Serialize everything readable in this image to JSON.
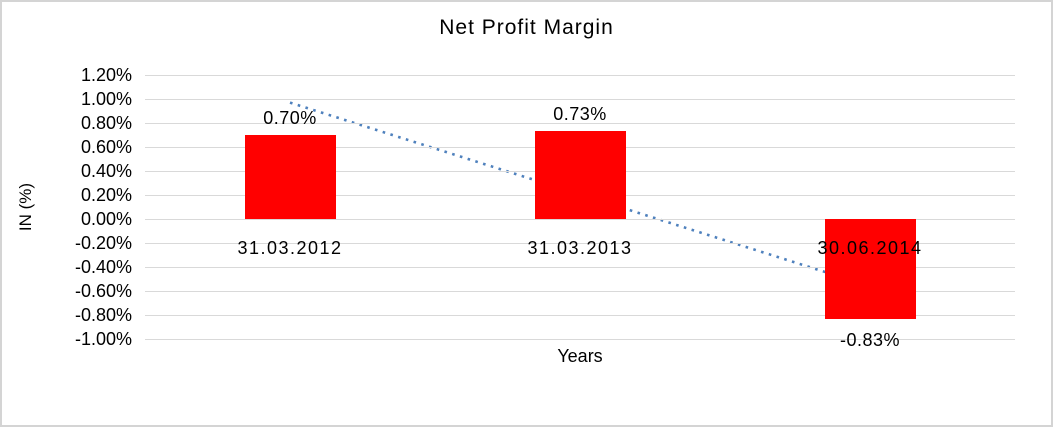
{
  "chart": {
    "title": "Net Profit Margin",
    "xlabel": "Years",
    "ylabel": "IN (%)"
  },
  "chart_data": {
    "type": "bar",
    "title": "Net Profit Margin",
    "xlabel": "Years",
    "ylabel": "IN (%)",
    "categories": [
      "31.03.2012",
      "31.03.2013",
      "30.06.2014"
    ],
    "values": [
      0.7,
      0.73,
      -0.83
    ],
    "value_labels": [
      "0.70%",
      "0.73%",
      "-0.83%"
    ],
    "ylim": [
      -1.0,
      1.2
    ],
    "ytick_step": 0.2,
    "ytick_labels": [
      "1.20%",
      "1.00%",
      "0.80%",
      "0.60%",
      "0.40%",
      "0.20%",
      "0.00%",
      "-0.20%",
      "-0.40%",
      "-0.60%",
      "-0.80%",
      "-1.00%"
    ],
    "grid": true,
    "legend": false,
    "bar_color": "#ff0000",
    "gridline_color": "#d9d9d9",
    "frame_border_color": "#d4d4d4",
    "trendline": {
      "style": "dotted",
      "color": "#4f81bd",
      "start_value": 0.97,
      "end_value": -0.56
    }
  }
}
